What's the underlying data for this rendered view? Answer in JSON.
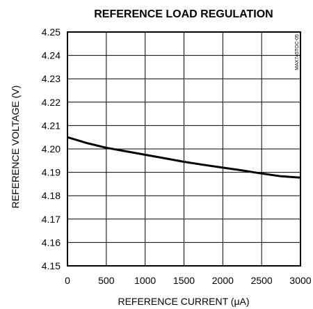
{
  "chart_data": {
    "type": "line",
    "title": "REFERENCE LOAD REGULATION",
    "xlabel": "REFERENCE CURRENT (μA)",
    "ylabel": "REFERENCE VOLTAGE (V)",
    "figure_code": "MAX745TOC-05",
    "xlim": [
      0,
      3000
    ],
    "ylim": [
      4.15,
      4.25
    ],
    "x_ticks": [
      "0",
      "500",
      "1000",
      "1500",
      "2000",
      "2500",
      "3000"
    ],
    "y_ticks": [
      "4.15",
      "4.16",
      "4.17",
      "4.18",
      "4.19",
      "4.20",
      "4.21",
      "4.22",
      "4.23",
      "4.24",
      "4.25"
    ],
    "grid": true,
    "series": [
      {
        "x": [
          0,
          250,
          500,
          750,
          1000,
          1250,
          1500,
          1750,
          2000,
          2250,
          2500,
          2750,
          3000
        ],
        "y": [
          4.205,
          4.2025,
          4.2005,
          4.199,
          4.1975,
          4.196,
          4.1945,
          4.1932,
          4.192,
          4.1908,
          4.1895,
          4.1883,
          4.1877
        ]
      }
    ]
  }
}
